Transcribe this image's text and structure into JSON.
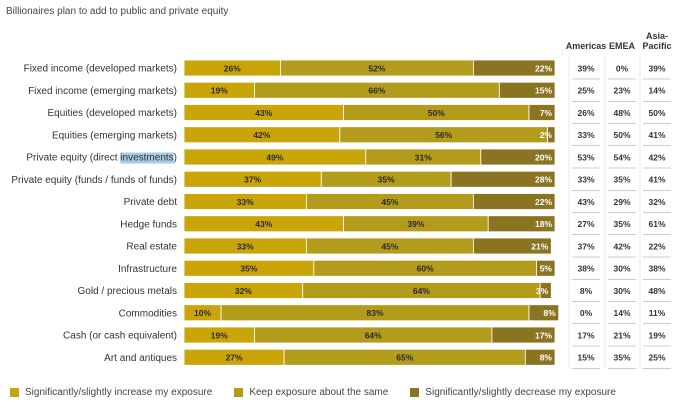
{
  "chart_data": {
    "type": "bar",
    "stacked": true,
    "orientation": "horizontal",
    "title": "Billionaires plan to add to public and private equity",
    "categories": [
      "Fixed income (developed markets)",
      "Fixed income (emerging markets)",
      "Equities (developed markets)",
      "Equities (emerging markets)",
      "Private equity (direct investments)",
      "Private equity (funds / funds of funds)",
      "Private debt",
      "Hedge funds",
      "Real estate",
      "Infrastructure",
      "Gold / precious metals",
      "Commodities",
      "Cash (or cash equivalent)",
      "Art and antiques"
    ],
    "series": [
      {
        "name": "Significantly/slightly increase my exposure",
        "color": "#c9a50a",
        "values": [
          26,
          19,
          43,
          42,
          49,
          37,
          33,
          43,
          33,
          35,
          32,
          10,
          19,
          27
        ]
      },
      {
        "name": "Keep exposure about the same",
        "color": "#b39b1c",
        "values": [
          52,
          66,
          50,
          56,
          31,
          35,
          45,
          39,
          45,
          60,
          64,
          83,
          64,
          65
        ]
      },
      {
        "name": "Significantly/slightly decrease my exposure",
        "color": "#8a7421",
        "values": [
          22,
          15,
          7,
          2,
          20,
          28,
          22,
          18,
          21,
          5,
          3,
          8,
          17,
          8
        ]
      }
    ],
    "regions": {
      "headers": [
        "Americas",
        "EMEA",
        "Asia-Pacific"
      ],
      "header_lines": [
        [
          "Americas"
        ],
        [
          "EMEA"
        ],
        [
          "Asia-",
          "Pacific"
        ]
      ],
      "values": [
        [
          39,
          0,
          39
        ],
        [
          25,
          23,
          14
        ],
        [
          26,
          48,
          50
        ],
        [
          33,
          50,
          41
        ],
        [
          53,
          54,
          42
        ],
        [
          33,
          35,
          41
        ],
        [
          43,
          29,
          32
        ],
        [
          27,
          35,
          61
        ],
        [
          37,
          42,
          22
        ],
        [
          38,
          30,
          38
        ],
        [
          8,
          30,
          48
        ],
        [
          0,
          14,
          11
        ],
        [
          17,
          21,
          19
        ],
        [
          15,
          35,
          25
        ]
      ]
    },
    "highlighted_text": "investments",
    "xlim": [
      0,
      100
    ],
    "legend_position": "bottom"
  }
}
